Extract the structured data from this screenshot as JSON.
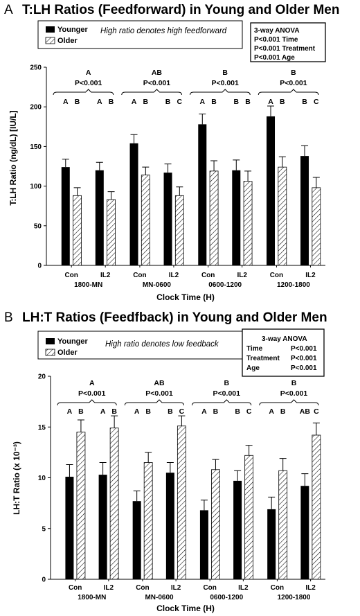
{
  "chart_data": [
    {
      "panel_label": "A",
      "title": "T:LH Ratios (Feedforward) in Young and Older Men",
      "type": "bar",
      "ylabel": "T:LH Ratio (ng/dL) [IU/L]",
      "xlabel": "Clock Time (H)",
      "ylim": [
        0,
        250
      ],
      "yticks": [
        0,
        50,
        100,
        150,
        200,
        250
      ],
      "grid": false,
      "legend_position": "top-left",
      "legend": [
        "Younger",
        "Older"
      ],
      "note": "High ratio denotes high feedforward",
      "anova": [
        "3-way ANOVA",
        "P<0.001 Time",
        "P<0.001 Treatment",
        "P<0.001 Age"
      ],
      "groups": [
        {
          "label": "1800-MN",
          "sig_letter": "A",
          "p": "P<0.001",
          "conditions": [
            {
              "tick": "Con",
              "younger": 124,
              "younger_err": 10,
              "older": 88,
              "older_err": 10,
              "letters": [
                "A",
                "B"
              ]
            },
            {
              "tick": "IL2",
              "younger": 120,
              "younger_err": 10,
              "older": 83,
              "older_err": 10,
              "letters": [
                "A",
                "B"
              ]
            }
          ]
        },
        {
          "label": "MN-0600",
          "sig_letter": "AB",
          "p": "P<0.001",
          "conditions": [
            {
              "tick": "Con",
              "younger": 154,
              "younger_err": 11,
              "older": 114,
              "older_err": 10,
              "letters": [
                "A",
                "B"
              ]
            },
            {
              "tick": "IL2",
              "younger": 117,
              "younger_err": 11,
              "older": 88,
              "older_err": 11,
              "letters": [
                "B",
                "C"
              ]
            }
          ]
        },
        {
          "label": "0600-1200",
          "sig_letter": "B",
          "p": "P<0.001",
          "conditions": [
            {
              "tick": "Con",
              "younger": 178,
              "younger_err": 13,
              "older": 119,
              "older_err": 13,
              "letters": [
                "A",
                "B"
              ]
            },
            {
              "tick": "IL2",
              "younger": 120,
              "younger_err": 13,
              "older": 106,
              "older_err": 13,
              "letters": [
                "B",
                "B"
              ]
            }
          ]
        },
        {
          "label": "1200-1800",
          "sig_letter": "B",
          "p": "P<0.001",
          "conditions": [
            {
              "tick": "Con",
              "younger": 188,
              "younger_err": 13,
              "older": 124,
              "older_err": 13,
              "letters": [
                "A",
                "B"
              ]
            },
            {
              "tick": "IL2",
              "younger": 138,
              "younger_err": 13,
              "older": 98,
              "older_err": 13,
              "letters": [
                "B",
                "C"
              ]
            }
          ]
        }
      ]
    },
    {
      "panel_label": "B",
      "title": "LH:T Ratios (Feedfback) in Young and Older Men",
      "type": "bar",
      "ylabel": "LH:T Ratio (x 10⁻³)",
      "xlabel": "Clock Time (H)",
      "ylim": [
        0,
        20
      ],
      "yticks": [
        0,
        5,
        10,
        15,
        20
      ],
      "grid": false,
      "legend_position": "top-left",
      "legend": [
        "Younger",
        "Older"
      ],
      "note": "High ratio denotes low feedback",
      "anova": [
        [
          "3-way ANOVA",
          ""
        ],
        [
          "Time",
          "P<0.001"
        ],
        [
          "Treatment",
          "P<0.001"
        ],
        [
          "Age",
          "P<0.001"
        ]
      ],
      "groups": [
        {
          "label": "1800-MN",
          "sig_letter": "A",
          "p": "P<0.001",
          "conditions": [
            {
              "tick": "Con",
              "younger": 10.1,
              "younger_err": 1.2,
              "older": 14.5,
              "older_err": 1.2,
              "letters": [
                "A",
                "B"
              ]
            },
            {
              "tick": "IL2",
              "younger": 10.3,
              "younger_err": 1.2,
              "older": 14.9,
              "older_err": 1.2,
              "letters": [
                "A",
                "B"
              ]
            }
          ]
        },
        {
          "label": "MN-0600",
          "sig_letter": "AB",
          "p": "P<0.001",
          "conditions": [
            {
              "tick": "Con",
              "younger": 7.7,
              "younger_err": 1.0,
              "older": 11.5,
              "older_err": 1.0,
              "letters": [
                "A",
                "B"
              ]
            },
            {
              "tick": "IL2",
              "younger": 10.5,
              "younger_err": 1.0,
              "older": 15.1,
              "older_err": 1.0,
              "letters": [
                "B",
                "C"
              ]
            }
          ]
        },
        {
          "label": "0600-1200",
          "sig_letter": "B",
          "p": "P<0.001",
          "conditions": [
            {
              "tick": "Con",
              "younger": 6.8,
              "younger_err": 1.0,
              "older": 10.8,
              "older_err": 1.0,
              "letters": [
                "A",
                "B"
              ]
            },
            {
              "tick": "IL2",
              "younger": 9.7,
              "younger_err": 1.0,
              "older": 12.2,
              "older_err": 1.0,
              "letters": [
                "B",
                "C"
              ]
            }
          ]
        },
        {
          "label": "1200-1800",
          "sig_letter": "B",
          "p": "P<0.001",
          "conditions": [
            {
              "tick": "Con",
              "younger": 6.9,
              "younger_err": 1.2,
              "older": 10.7,
              "older_err": 1.2,
              "letters": [
                "A",
                "B"
              ]
            },
            {
              "tick": "IL2",
              "younger": 9.2,
              "younger_err": 1.2,
              "older": 14.2,
              "older_err": 1.2,
              "letters": [
                "AB",
                "C"
              ]
            }
          ]
        }
      ]
    }
  ],
  "colors": {
    "younger": "#000000",
    "older_hatch": "#000000",
    "older_fill": "#ffffff"
  }
}
